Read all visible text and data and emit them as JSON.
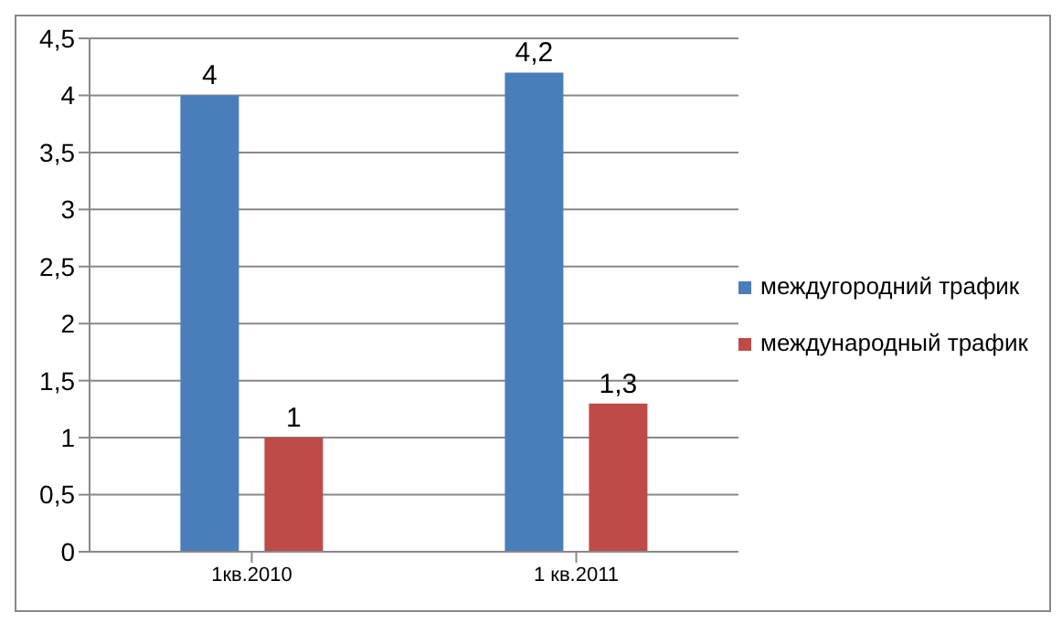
{
  "chart_data": {
    "type": "bar",
    "categories": [
      "1кв.2010",
      "1 кв.2011"
    ],
    "series": [
      {
        "name": "междугородний трафик",
        "color": "#4a7ebb",
        "values": [
          4,
          4.2
        ],
        "value_labels": [
          "4",
          "4,2"
        ]
      },
      {
        "name": "международный трафик",
        "color": "#be4b48",
        "values": [
          1,
          1.3
        ],
        "value_labels": [
          "1",
          "1,3"
        ]
      }
    ],
    "ylim": [
      0,
      4.5
    ],
    "yticks": [
      0,
      {
        "value": 0.5,
        "label": "0,5"
      },
      1,
      {
        "value": 1.5,
        "label": "1,5"
      },
      2,
      {
        "value": 2.5,
        "label": "2,5"
      },
      3,
      {
        "value": 3.5,
        "label": "3,5"
      },
      4,
      {
        "value": 4.5,
        "label": "4,5"
      }
    ],
    "grid": "y",
    "legend": "right"
  }
}
